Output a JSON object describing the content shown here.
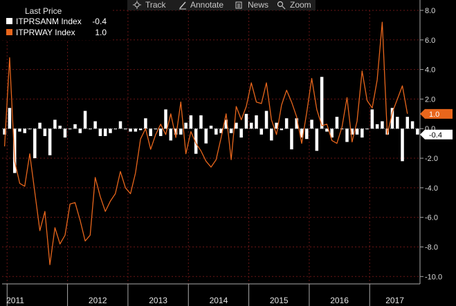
{
  "toolbar": {
    "track_label": "Track",
    "annotate_label": "Annotate",
    "news_label": "News",
    "zoom_label": "Zoom"
  },
  "legend": {
    "title": "Last Price",
    "series_names": [
      "ITPRSANM Index",
      "ITPRWAY Index"
    ],
    "series_values": [
      "-0.4",
      "1.0"
    ]
  },
  "x_axis_labels": [
    "2011",
    "2012",
    "2013",
    "2014",
    "2015",
    "2016",
    "2017"
  ],
  "y_tick_labels": [
    "8.0",
    "6.0",
    "4.0",
    "2.0",
    "0.0",
    "-2.0",
    "-4.0",
    "-6.0",
    "-8.0",
    "-10.0"
  ],
  "colors": {
    "background": "#000000",
    "bar": "#ffffff",
    "line": "#e8661c",
    "grid": "#6b1616",
    "axis_text": "#dcdcdc"
  },
  "chart_data": {
    "type": "bar",
    "ylim": [
      -10.5,
      8
    ],
    "x_range": [
      "2010-12",
      "2017-06"
    ],
    "grid": true,
    "legend_position": "top-left",
    "series": [
      {
        "name": "ITPRSANM Index",
        "type": "bar",
        "last": -0.4,
        "values": [
          -0.4,
          1.4,
          -3.0,
          -0.2,
          -0.3,
          0.0,
          -2.0,
          0.4,
          -0.5,
          -1.8,
          0.6,
          0.2,
          -0.6,
          0.0,
          0.3,
          -0.3,
          1.2,
          0.0,
          0.5,
          -0.5,
          -0.5,
          -0.3,
          0.0,
          0.5,
          0.0,
          -0.2,
          -0.2,
          -0.1,
          0.7,
          -0.5,
          0.0,
          -0.5,
          1.3,
          -0.8,
          -0.4,
          -0.4,
          0.4,
          0.9,
          -1.7,
          0.9,
          -1.0,
          0.2,
          -0.4,
          -0.3,
          0.6,
          -0.3,
          0.4,
          -0.6,
          1.0,
          0.4,
          0.9,
          -0.4,
          1.2,
          -0.8,
          0.4,
          -0.1,
          0.7,
          -1.4,
          0.7,
          -0.6,
          -0.7,
          0.6,
          -1.5,
          3.5,
          -0.2,
          -0.6,
          0.8,
          0.0,
          -0.9,
          -0.4,
          -0.4,
          -0.6,
          0.0,
          1.3,
          0.3,
          0.5,
          -0.4,
          1.4,
          0.8,
          -2.2,
          0.8,
          0.5,
          -0.4
        ]
      },
      {
        "name": "ITPRWAY Index",
        "type": "line",
        "last": 1.0,
        "values": [
          -1.2,
          4.8,
          -2.2,
          -3.7,
          -3.9,
          -1.7,
          -4.3,
          -6.9,
          -5.6,
          -9.2,
          -6.7,
          -7.8,
          -7.2,
          -5.1,
          -5.0,
          -6.2,
          -7.6,
          -7.2,
          -3.3,
          -4.6,
          -5.6,
          -4.9,
          -4.4,
          -2.9,
          -4.0,
          -4.4,
          -3.0,
          -0.7,
          0.0,
          -1.4,
          -0.4,
          0.3,
          -0.4,
          1.0,
          -0.6,
          1.8,
          -1.7,
          -0.2,
          -1.0,
          -1.5,
          -2.2,
          -2.6,
          -2.1,
          -0.6,
          1.0,
          -2.1,
          1.5,
          0.6,
          1.5,
          3.1,
          1.8,
          1.7,
          3.1,
          0.6,
          -0.4,
          1.6,
          2.6,
          1.8,
          0.8,
          -1.0,
          1.1,
          3.4,
          1.3,
          0.2,
          0.3,
          -0.8,
          -1.0,
          0.1,
          2.1,
          -0.9,
          0.5,
          3.9,
          1.9,
          1.4,
          3.3,
          7.2,
          -0.4,
          1.1,
          2.0,
          2.9,
          1.0
        ]
      }
    ]
  }
}
